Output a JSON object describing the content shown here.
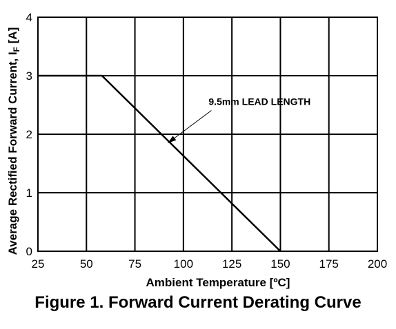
{
  "figure": {
    "caption": "Figure 1. Forward Current Derating Curve"
  },
  "chart_data": {
    "type": "line",
    "title": "",
    "xlabel": "Ambient Temperature [ºC]",
    "ylabel_main": "Average Rectified Forward Current, I",
    "ylabel_sub": "F",
    "ylabel_unit": " [A]",
    "xlim": [
      25,
      200
    ],
    "ylim": [
      0,
      4
    ],
    "x_ticks": [
      "25",
      "50",
      "75",
      "100",
      "125",
      "150",
      "175",
      "200"
    ],
    "y_ticks": [
      "0",
      "1",
      "2",
      "3",
      "4"
    ],
    "grid": true,
    "series": [
      {
        "x": [
          25,
          58,
          150
        ],
        "y": [
          3,
          3,
          0
        ]
      }
    ],
    "annotation": {
      "text": "9.5mm LEAD LENGTH",
      "point": [
        92,
        1.85
      ],
      "text_at": [
        113,
        2.5
      ]
    }
  }
}
